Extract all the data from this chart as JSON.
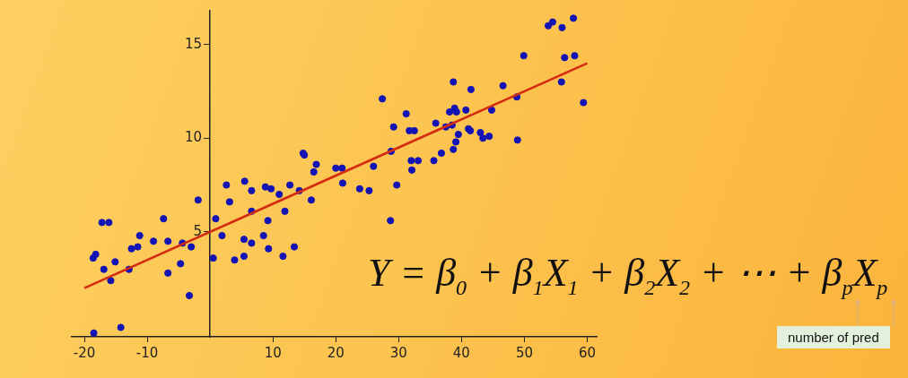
{
  "chart_data": {
    "type": "scatter",
    "xlim": [
      -22,
      61.5
    ],
    "ylim": [
      -0.6,
      16.8
    ],
    "xticks": [
      -20,
      -10,
      10,
      20,
      30,
      40,
      50,
      60
    ],
    "yticks": [
      5,
      10,
      15
    ],
    "grid": false,
    "legend": false,
    "annotations": [
      "Y = β$_{0}$ + β$_{1}$X$_{1}$ + β$_{2}$X$_{2}$ + ⋯ + β$_{p}$X$_{p}$",
      "number of pred"
    ],
    "series": [
      {
        "color": "#1414b4",
        "marker": "circle",
        "x": [
          -18.6,
          -18.2,
          -17.2,
          -16.1,
          -16.9,
          -15.8,
          -15.1,
          -14.2,
          -12.9,
          -12.5,
          -11.5,
          -11.2,
          -9.0,
          -7.4,
          -6.7,
          -6.7,
          -4.7,
          -4.4,
          -3.3,
          -3.0,
          -1.9,
          -18.5,
          0.5,
          0.9,
          1.9,
          2.6,
          3.1,
          3.9,
          5.4,
          5.4,
          5.5,
          6.6,
          6.6,
          6.6,
          8.5,
          8.8,
          9.2,
          9.3,
          9.7,
          11.0,
          11.6,
          11.9,
          12.7,
          13.4,
          14.2,
          14.8,
          15.0,
          16.1,
          16.5,
          16.9,
          20.0,
          21.0,
          21.1,
          23.8,
          25.3,
          26.0,
          27.4,
          28.8,
          29.2,
          29.7,
          28.7,
          31.2,
          31.7,
          32.5,
          32.0,
          32.1,
          33.1,
          35.6,
          35.9,
          36.8,
          37.5,
          38.5,
          38.1,
          38.7,
          38.9,
          39.2,
          39.1,
          38.7,
          39.5,
          40.7,
          41.1,
          41.4,
          41.5,
          43.0,
          43.4,
          44.4,
          44.8,
          46.6,
          48.8,
          48.9,
          49.9,
          53.8,
          54.5,
          56.0,
          57.8,
          56.4,
          58.0,
          55.9,
          59.4
        ],
        "values": [
          3.6,
          3.8,
          5.5,
          5.5,
          3.0,
          2.4,
          3.4,
          -0.1,
          3.0,
          4.1,
          4.2,
          4.8,
          4.5,
          5.7,
          4.5,
          2.8,
          3.3,
          4.4,
          1.6,
          4.2,
          6.7,
          -0.4,
          3.6,
          5.7,
          4.8,
          7.5,
          6.6,
          3.5,
          3.7,
          4.6,
          7.7,
          7.2,
          6.1,
          4.4,
          4.8,
          7.4,
          5.6,
          4.1,
          7.3,
          7.0,
          3.7,
          6.1,
          7.5,
          4.2,
          7.2,
          9.2,
          9.1,
          6.7,
          8.2,
          8.6,
          8.4,
          8.4,
          7.6,
          7.3,
          7.2,
          8.5,
          12.1,
          9.3,
          10.6,
          7.5,
          5.6,
          11.3,
          10.4,
          10.4,
          8.8,
          8.3,
          8.8,
          8.8,
          10.8,
          9.2,
          10.6,
          10.7,
          11.4,
          13.0,
          11.6,
          11.4,
          9.8,
          9.4,
          10.2,
          11.5,
          10.5,
          10.4,
          12.6,
          10.3,
          10.0,
          10.1,
          11.5,
          12.8,
          12.2,
          9.9,
          14.4,
          16.0,
          16.2,
          15.9,
          16.4,
          14.3,
          14.4,
          13.0,
          11.9
        ]
      },
      {
        "type": "line",
        "color": "#d42a10",
        "x": [
          -20,
          60
        ],
        "values": [
          2.0,
          14.0
        ]
      }
    ]
  }
}
